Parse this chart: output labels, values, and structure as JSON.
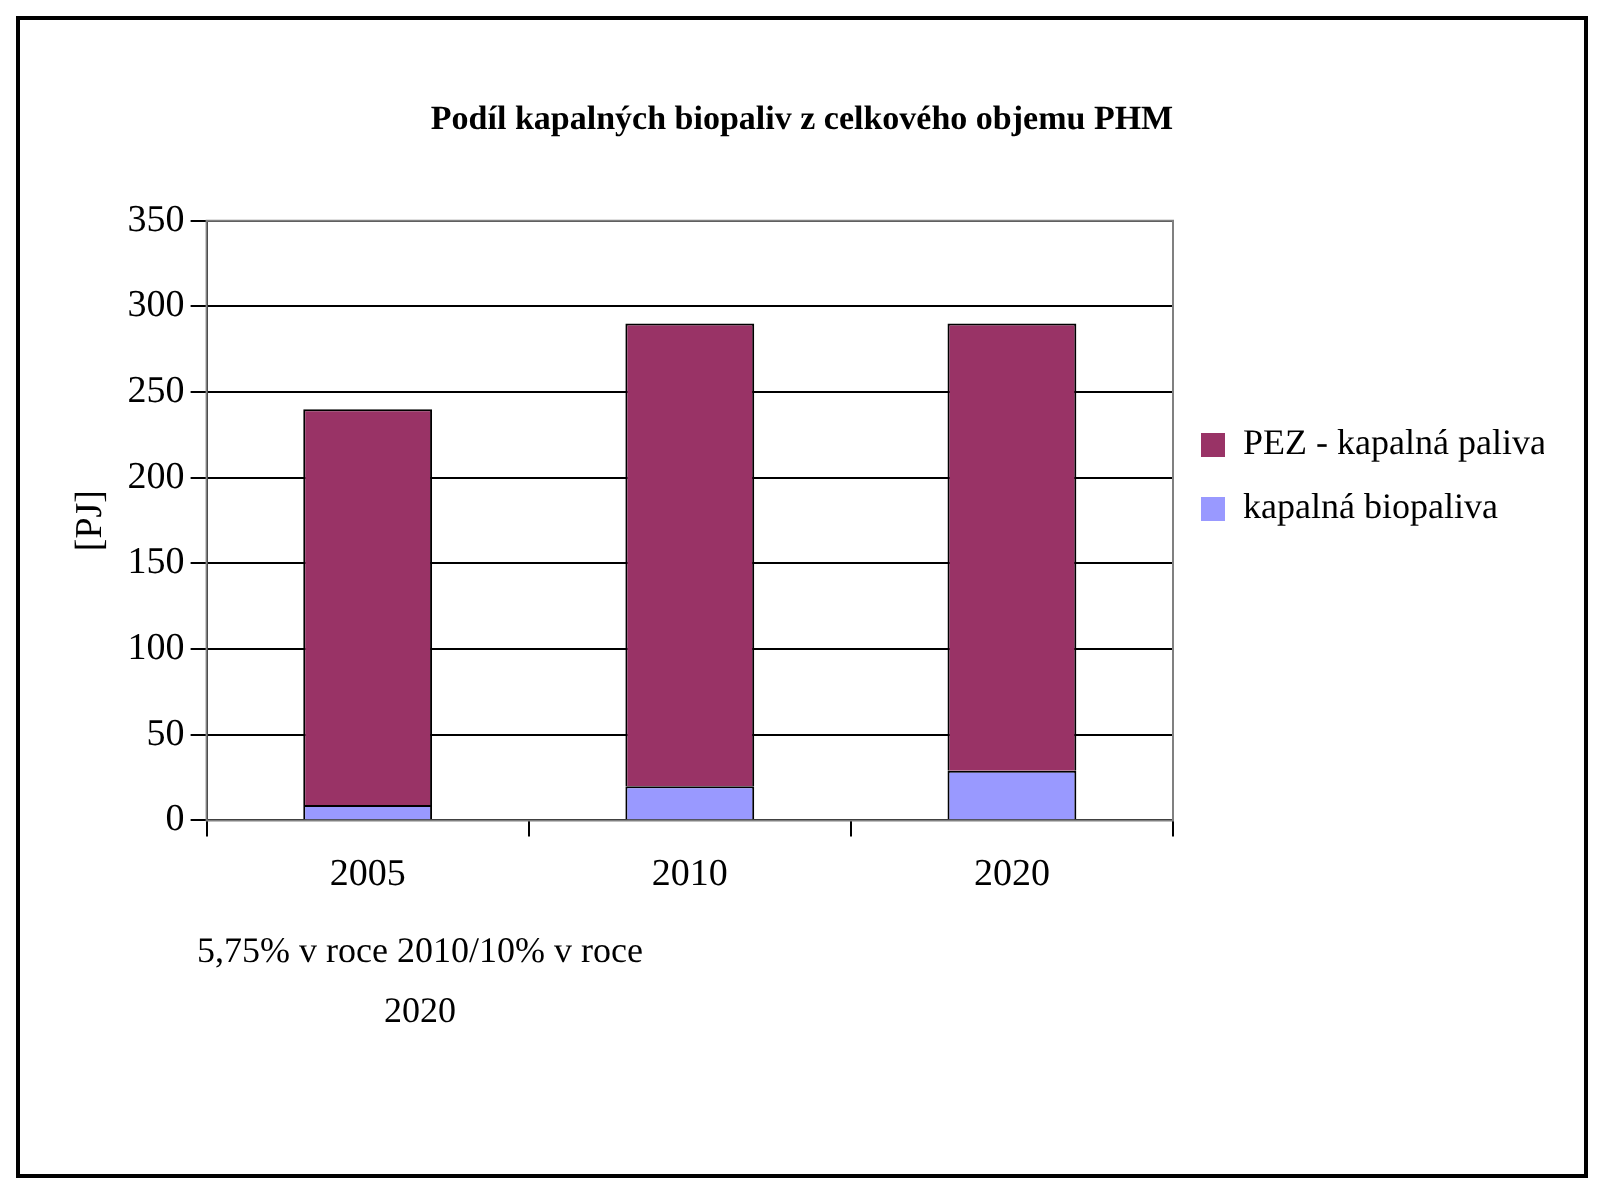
{
  "chart_data": {
    "type": "bar",
    "title": "Podíl kapalných biopaliv z celkového objemu PHM",
    "ylabel": "[PJ]",
    "categories": [
      "2005",
      "2010",
      "2020"
    ],
    "stacked": true,
    "series": [
      {
        "name": "kapalná biopaliva",
        "color": "#9999ff",
        "values": [
          9,
          20,
          29
        ]
      },
      {
        "name": "PEZ - kapalná paliva",
        "color": "#993366",
        "values": [
          231,
          270,
          261
        ]
      }
    ],
    "ylim": [
      0,
      350
    ],
    "yticks": [
      0,
      50,
      100,
      150,
      200,
      250,
      300,
      350
    ],
    "grid": "y",
    "legend": "right",
    "annotations": [
      "5,75% v roce 2010/10% v roce 2020"
    ]
  }
}
